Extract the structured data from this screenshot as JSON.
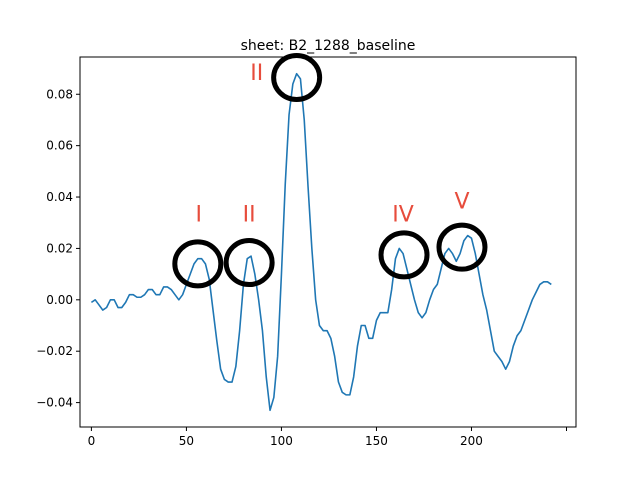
{
  "chart_data": {
    "type": "line",
    "title": "sheet: B2_1288_baseline",
    "xlabel": "",
    "ylabel": "",
    "xlim": [
      -6,
      255
    ],
    "ylim": [
      -0.0495,
      0.0945
    ],
    "xticks": [
      0,
      50,
      100,
      150,
      200,
      250
    ],
    "xtick_labels": [
      "0",
      "50",
      "100",
      "150",
      "200",
      ""
    ],
    "yticks": [
      -0.04,
      -0.02,
      0.0,
      0.02,
      0.04,
      0.06,
      0.08
    ],
    "ytick_labels": [
      "−0.04",
      "−0.02",
      "0.00",
      "0.02",
      "0.04",
      "0.06",
      "0.08"
    ],
    "grid": false,
    "line_color": "#1f77b4",
    "annotation_color": "#e74c3c",
    "series": [
      {
        "x": [
          0,
          2,
          4,
          6,
          8,
          10,
          12,
          14,
          16,
          18,
          20,
          22,
          24,
          26,
          28,
          30,
          32,
          34,
          36,
          38,
          40,
          42,
          44,
          46,
          48,
          50,
          52,
          54,
          56,
          58,
          60,
          62,
          64,
          66,
          68,
          70,
          72,
          74,
          76,
          78,
          80,
          82,
          84,
          86,
          88,
          90,
          92,
          94,
          96,
          98,
          100,
          102,
          104,
          106,
          108,
          110,
          112,
          114,
          116,
          118,
          120,
          122,
          124,
          126,
          128,
          130,
          132,
          134,
          136,
          138,
          140,
          142,
          144,
          146,
          148,
          150,
          152,
          154,
          156,
          158,
          160,
          162,
          164,
          166,
          168,
          170,
          172,
          174,
          176,
          178,
          180,
          182,
          184,
          186,
          188,
          190,
          192,
          194,
          196,
          198,
          200,
          202,
          204,
          206,
          208,
          210,
          212,
          214,
          216,
          218,
          220,
          222,
          224,
          226,
          228,
          230,
          232,
          234,
          236,
          238,
          240,
          242
        ],
        "y": [
          -0.001,
          0.0,
          -0.002,
          -0.004,
          -0.003,
          0.0,
          0.0,
          -0.003,
          -0.003,
          -0.001,
          0.002,
          0.002,
          0.001,
          0.001,
          0.002,
          0.004,
          0.004,
          0.002,
          0.002,
          0.005,
          0.005,
          0.004,
          0.002,
          0.0,
          0.002,
          0.006,
          0.01,
          0.014,
          0.016,
          0.016,
          0.014,
          0.008,
          -0.004,
          -0.016,
          -0.027,
          -0.031,
          -0.032,
          -0.032,
          -0.026,
          -0.012,
          0.006,
          0.016,
          0.017,
          0.01,
          0.0,
          -0.012,
          -0.03,
          -0.043,
          -0.038,
          -0.022,
          0.01,
          0.045,
          0.072,
          0.084,
          0.088,
          0.086,
          0.07,
          0.044,
          0.02,
          0.0,
          -0.01,
          -0.012,
          -0.012,
          -0.015,
          -0.022,
          -0.032,
          -0.036,
          -0.037,
          -0.037,
          -0.03,
          -0.018,
          -0.01,
          -0.01,
          -0.015,
          -0.015,
          -0.008,
          -0.005,
          -0.005,
          -0.005,
          0.004,
          0.016,
          0.02,
          0.018,
          0.012,
          0.006,
          0.0,
          -0.005,
          -0.007,
          -0.005,
          0.0,
          0.004,
          0.006,
          0.012,
          0.018,
          0.02,
          0.018,
          0.015,
          0.018,
          0.023,
          0.025,
          0.024,
          0.018,
          0.01,
          0.002,
          -0.004,
          -0.012,
          -0.02,
          -0.022,
          -0.024,
          -0.027,
          -0.024,
          -0.018,
          -0.014,
          -0.012,
          -0.008,
          -0.004,
          0.0,
          0.003,
          0.006,
          0.007,
          0.007,
          0.006
        ]
      }
    ],
    "annotations": [
      {
        "label": "I",
        "label_x": 56.5,
        "label_y": 0.0305,
        "circle_x": 56,
        "circle_y": 0.014
      },
      {
        "label": "II",
        "label_x": 83,
        "label_y": 0.0305,
        "circle_x": 83,
        "circle_y": 0.0145
      },
      {
        "label": "II",
        "label_x": 87,
        "label_y": 0.0855,
        "circle_x": 108,
        "circle_y": 0.0865
      },
      {
        "label": "IV",
        "label_x": 164,
        "label_y": 0.0305,
        "circle_x": 164.5,
        "circle_y": 0.0175
      },
      {
        "label": "V",
        "label_x": 195,
        "label_y": 0.0355,
        "circle_x": 195,
        "circle_y": 0.0205
      }
    ]
  }
}
